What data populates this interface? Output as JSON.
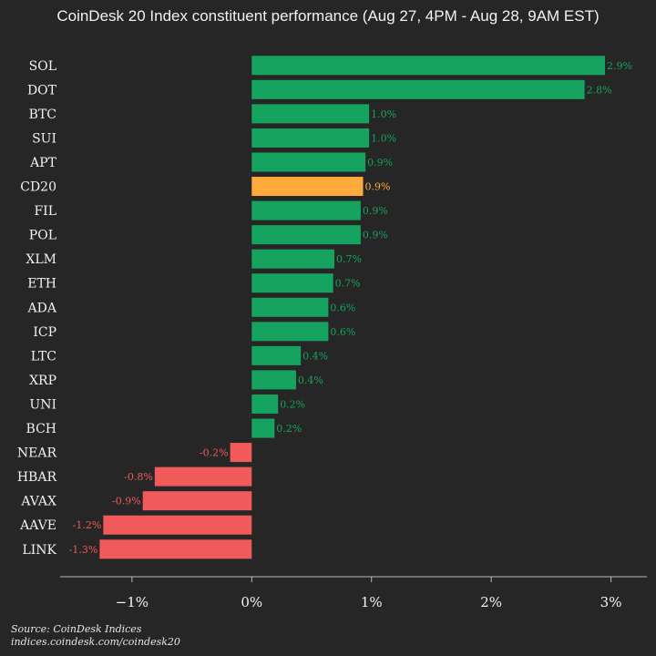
{
  "chart_data": {
    "type": "bar",
    "orientation": "horizontal",
    "title": "CoinDesk 20 Index constituent performance (Aug 27, 4PM - Aug 28, 9AM EST)",
    "categories": [
      "SOL",
      "DOT",
      "BTC",
      "SUI",
      "APT",
      "CD20",
      "FIL",
      "POL",
      "XLM",
      "ETH",
      "ADA",
      "ICP",
      "LTC",
      "XRP",
      "UNI",
      "BCH",
      "NEAR",
      "HBAR",
      "AVAX",
      "AAVE",
      "LINK"
    ],
    "values": [
      2.95,
      2.78,
      0.98,
      0.98,
      0.95,
      0.93,
      0.91,
      0.91,
      0.69,
      0.68,
      0.64,
      0.64,
      0.41,
      0.37,
      0.22,
      0.19,
      -0.18,
      -0.81,
      -0.91,
      -1.24,
      -1.27
    ],
    "data_labels": [
      "2.9%",
      "2.8%",
      "1.0%",
      "1.0%",
      "0.9%",
      "0.9%",
      "0.9%",
      "0.9%",
      "0.7%",
      "0.7%",
      "0.6%",
      "0.6%",
      "0.4%",
      "0.4%",
      "0.2%",
      "0.2%",
      "-0.2%",
      "-0.8%",
      "-0.9%",
      "-1.2%",
      "-1.3%"
    ],
    "highlight": "CD20",
    "xlim": [
      -1.6,
      3.3
    ],
    "xticks": [
      -1,
      0,
      1,
      2,
      3
    ],
    "xtick_labels": [
      "−1%",
      "0%",
      "1%",
      "2%",
      "3%"
    ],
    "xlabel": "",
    "ylabel": "",
    "grid": false,
    "legend": "none",
    "colors": {
      "positive": "#16a35f",
      "negative": "#f05a5a",
      "highlight": "#ffaa3c",
      "background": "#262626",
      "text": "#f2f2f2",
      "axis": "#bbbbbb"
    }
  },
  "footer": {
    "source": "Source: CoinDesk Indices",
    "url": "indices.coindesk.com/coindesk20"
  }
}
